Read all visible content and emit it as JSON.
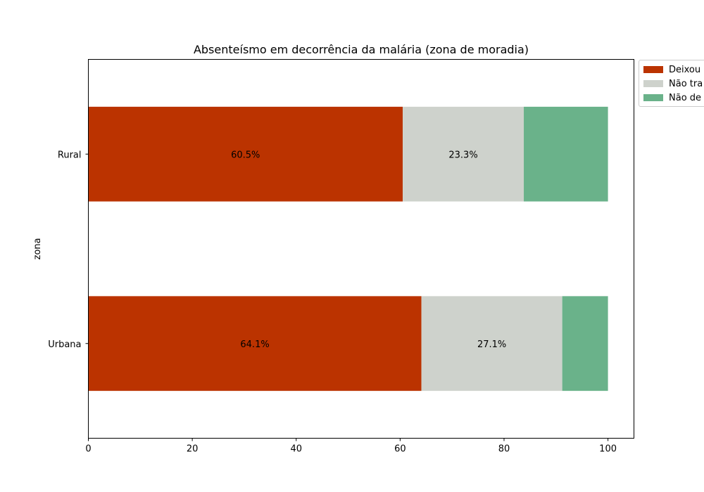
{
  "chart_data": {
    "type": "bar",
    "orientation": "horizontal",
    "stacked": true,
    "title": "Absenteísmo em decorrência da malária (zona de moradia)",
    "xlabel": "",
    "ylabel": "zona",
    "categories": [
      "Urbana",
      "Rural"
    ],
    "xlim": [
      0,
      105
    ],
    "xticks": [
      0,
      20,
      40,
      60,
      80,
      100
    ],
    "grid": false,
    "legend_position": "outside upper right",
    "series": [
      {
        "name": "Deixou",
        "values": [
          64.1,
          60.5
        ],
        "color": "#bb3300",
        "labels": [
          "64.1%",
          "60.5%"
        ]
      },
      {
        "name": "Não tra",
        "values": [
          27.1,
          23.3
        ],
        "color": "#ced2cc",
        "labels": [
          "27.1%",
          "23.3%"
        ]
      },
      {
        "name": "Não de",
        "values": [
          8.8,
          16.2
        ],
        "color": "#6ab28a",
        "labels": [
          "",
          ""
        ]
      }
    ]
  }
}
